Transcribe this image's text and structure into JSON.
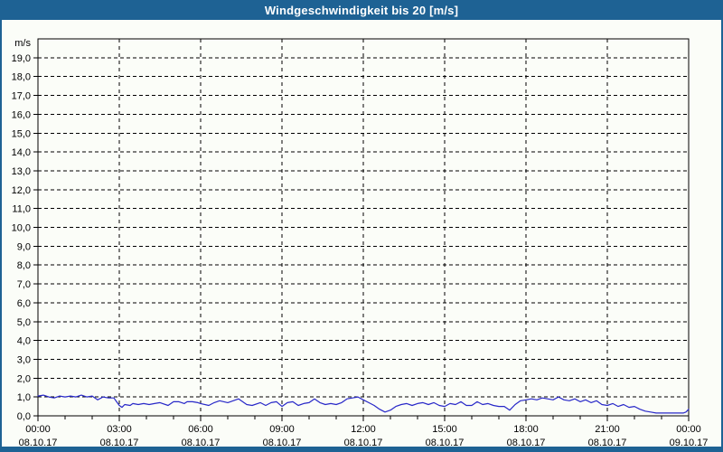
{
  "window": {
    "title": "Windgeschwindigkeit bis 20 [m/s]"
  },
  "colors": {
    "frame": "#1e6294",
    "title_text": "#ffffff",
    "background": "#fbfdf8",
    "axis": "#000000",
    "grid": "#000000",
    "label_text": "#000000",
    "line": "#2828c8"
  },
  "chart_data": {
    "type": "line",
    "title": "Windgeschwindigkeit bis 20 [m/s]",
    "unit_label": "m/s",
    "ylim": [
      0,
      20
    ],
    "xlim_hours": [
      0,
      24
    ],
    "grid": true,
    "y_tick_labels": [
      "0,0",
      "1,0",
      "2,0",
      "3,0",
      "4,0",
      "5,0",
      "6,0",
      "7,0",
      "8,0",
      "9,0",
      "10,0",
      "11,0",
      "12,0",
      "13,0",
      "14,0",
      "15,0",
      "16,0",
      "17,0",
      "18,0",
      "19,0"
    ],
    "x_ticks": [
      {
        "hour": 0,
        "time": "00:00",
        "date": "08.10.17"
      },
      {
        "hour": 3,
        "time": "03:00",
        "date": "08.10.17"
      },
      {
        "hour": 6,
        "time": "06:00",
        "date": "08.10.17"
      },
      {
        "hour": 9,
        "time": "09:00",
        "date": "08.10.17"
      },
      {
        "hour": 12,
        "time": "12:00",
        "date": "08.10.17"
      },
      {
        "hour": 15,
        "time": "15:00",
        "date": "08.10.17"
      },
      {
        "hour": 18,
        "time": "18:00",
        "date": "08.10.17"
      },
      {
        "hour": 21,
        "time": "21:00",
        "date": "08.10.17"
      },
      {
        "hour": 24,
        "time": "00:00",
        "date": "09.10.17"
      }
    ],
    "minor_x_tick_every_hours": 1,
    "series": [
      {
        "name": "Windgeschwindigkeit",
        "color": "#2828c8",
        "points": [
          [
            0.0,
            1.05
          ],
          [
            0.2,
            1.1
          ],
          [
            0.4,
            1.0
          ],
          [
            0.6,
            0.95
          ],
          [
            0.8,
            1.05
          ],
          [
            1.0,
            1.0
          ],
          [
            1.2,
            1.05
          ],
          [
            1.4,
            1.0
          ],
          [
            1.6,
            1.1
          ],
          [
            1.8,
            1.0
          ],
          [
            2.0,
            1.05
          ],
          [
            2.2,
            0.85
          ],
          [
            2.4,
            1.0
          ],
          [
            2.6,
            0.95
          ],
          [
            2.8,
            0.95
          ],
          [
            2.9,
            0.75
          ],
          [
            3.0,
            0.55
          ],
          [
            3.1,
            0.45
          ],
          [
            3.2,
            0.6
          ],
          [
            3.4,
            0.55
          ],
          [
            3.5,
            0.65
          ],
          [
            3.7,
            0.6
          ],
          [
            3.9,
            0.65
          ],
          [
            4.1,
            0.6
          ],
          [
            4.3,
            0.65
          ],
          [
            4.5,
            0.7
          ],
          [
            4.8,
            0.55
          ],
          [
            5.0,
            0.75
          ],
          [
            5.2,
            0.75
          ],
          [
            5.4,
            0.65
          ],
          [
            5.5,
            0.75
          ],
          [
            5.7,
            0.75
          ],
          [
            5.9,
            0.7
          ],
          [
            6.0,
            0.65
          ],
          [
            6.3,
            0.55
          ],
          [
            6.5,
            0.7
          ],
          [
            6.7,
            0.8
          ],
          [
            7.0,
            0.7
          ],
          [
            7.2,
            0.8
          ],
          [
            7.4,
            0.9
          ],
          [
            7.7,
            0.6
          ],
          [
            7.9,
            0.55
          ],
          [
            8.2,
            0.7
          ],
          [
            8.4,
            0.55
          ],
          [
            8.6,
            0.7
          ],
          [
            8.8,
            0.75
          ],
          [
            9.0,
            0.5
          ],
          [
            9.2,
            0.7
          ],
          [
            9.4,
            0.75
          ],
          [
            9.6,
            0.55
          ],
          [
            9.8,
            0.65
          ],
          [
            10.0,
            0.7
          ],
          [
            10.2,
            0.9
          ],
          [
            10.4,
            0.7
          ],
          [
            10.6,
            0.6
          ],
          [
            10.8,
            0.65
          ],
          [
            11.0,
            0.6
          ],
          [
            11.2,
            0.7
          ],
          [
            11.4,
            0.9
          ],
          [
            11.6,
            0.95
          ],
          [
            11.8,
            1.0
          ],
          [
            12.0,
            0.85
          ],
          [
            12.2,
            0.7
          ],
          [
            12.4,
            0.55
          ],
          [
            12.6,
            0.35
          ],
          [
            12.8,
            0.2
          ],
          [
            13.0,
            0.3
          ],
          [
            13.2,
            0.5
          ],
          [
            13.4,
            0.6
          ],
          [
            13.6,
            0.65
          ],
          [
            13.8,
            0.55
          ],
          [
            14.0,
            0.65
          ],
          [
            14.2,
            0.7
          ],
          [
            14.4,
            0.6
          ],
          [
            14.6,
            0.7
          ],
          [
            14.8,
            0.55
          ],
          [
            15.0,
            0.5
          ],
          [
            15.2,
            0.65
          ],
          [
            15.4,
            0.6
          ],
          [
            15.6,
            0.75
          ],
          [
            15.8,
            0.55
          ],
          [
            16.0,
            0.55
          ],
          [
            16.2,
            0.75
          ],
          [
            16.4,
            0.6
          ],
          [
            16.6,
            0.65
          ],
          [
            16.8,
            0.55
          ],
          [
            17.0,
            0.5
          ],
          [
            17.2,
            0.5
          ],
          [
            17.4,
            0.3
          ],
          [
            17.6,
            0.6
          ],
          [
            17.8,
            0.8
          ],
          [
            18.0,
            0.85
          ],
          [
            18.2,
            0.9
          ],
          [
            18.4,
            0.85
          ],
          [
            18.6,
            0.95
          ],
          [
            18.8,
            0.9
          ],
          [
            19.0,
            0.85
          ],
          [
            19.2,
            1.0
          ],
          [
            19.4,
            0.85
          ],
          [
            19.6,
            0.8
          ],
          [
            19.8,
            0.9
          ],
          [
            20.0,
            0.75
          ],
          [
            20.2,
            0.85
          ],
          [
            20.4,
            0.7
          ],
          [
            20.6,
            0.8
          ],
          [
            20.8,
            0.6
          ],
          [
            21.0,
            0.55
          ],
          [
            21.2,
            0.65
          ],
          [
            21.4,
            0.5
          ],
          [
            21.6,
            0.6
          ],
          [
            21.8,
            0.45
          ],
          [
            22.0,
            0.5
          ],
          [
            22.2,
            0.35
          ],
          [
            22.4,
            0.25
          ],
          [
            22.6,
            0.2
          ],
          [
            22.8,
            0.15
          ],
          [
            23.0,
            0.15
          ],
          [
            23.2,
            0.15
          ],
          [
            23.4,
            0.15
          ],
          [
            23.6,
            0.15
          ],
          [
            23.8,
            0.15
          ],
          [
            23.9,
            0.2
          ],
          [
            24.0,
            0.35
          ]
        ]
      }
    ]
  }
}
